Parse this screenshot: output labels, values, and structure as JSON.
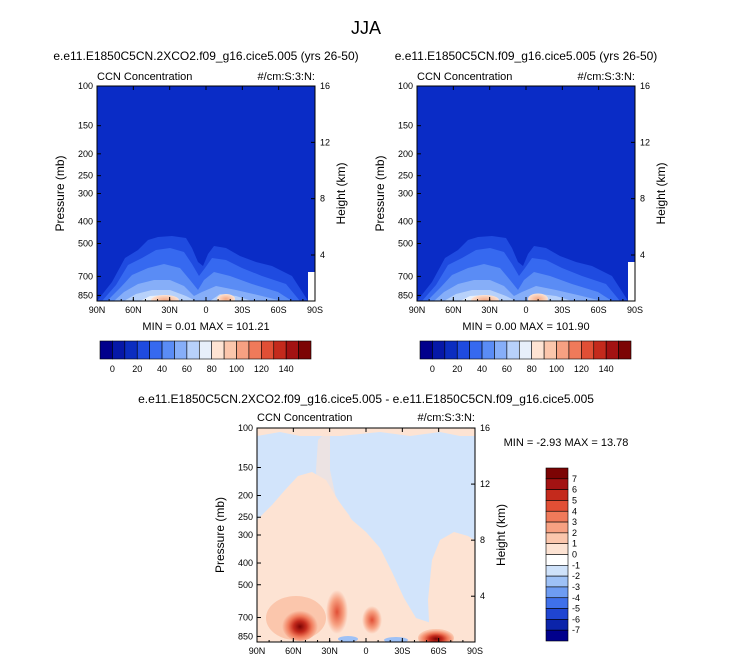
{
  "figure_title": "JJA",
  "chart_data": [
    {
      "type": "heatmap",
      "title": "e.e11.E1850C5CN.2XCO2.f09_g16.cice5.005 (yrs 26-50)",
      "subtitle_left": "CCN Concentration",
      "subtitle_right": "#/cm:S:3:N:",
      "ylabel": "Pressure (mb)",
      "y2label": "Height (km)",
      "x_ticks": [
        "90N",
        "60N",
        "30N",
        "0",
        "30S",
        "60S",
        "90S"
      ],
      "y_ticks": [
        "100",
        "150",
        "200",
        "250",
        "300",
        "400",
        "500",
        "700",
        "850"
      ],
      "y2_ticks": [
        "16",
        "12",
        "8",
        "4"
      ],
      "stats": "MIN =  0.01  MAX = 101.21",
      "min": 0.01,
      "max": 101.21
    },
    {
      "type": "heatmap",
      "title": "e.e11.E1850C5CN.f09_g16.cice5.005 (yrs 26-50)",
      "subtitle_left": "CCN Concentration",
      "subtitle_right": "#/cm:S:3:N:",
      "ylabel": "Pressure (mb)",
      "y2label": "Height (km)",
      "x_ticks": [
        "90N",
        "60N",
        "30N",
        "0",
        "30S",
        "60S",
        "90S"
      ],
      "y_ticks": [
        "100",
        "150",
        "200",
        "250",
        "300",
        "400",
        "500",
        "700",
        "850"
      ],
      "y2_ticks": [
        "16",
        "12",
        "8",
        "4"
      ],
      "stats": "MIN =  0.00  MAX = 101.90",
      "min": 0.0,
      "max": 101.9
    },
    {
      "type": "heatmap",
      "title": "e.e11.E1850C5CN.2XCO2.f09_g16.cice5.005 - e.e11.E1850C5CN.f09_g16.cice5.005",
      "subtitle_left": "CCN Concentration",
      "subtitle_right": "#/cm:S:3:N:",
      "ylabel": "Pressure (mb)",
      "y2label": "Height (km)",
      "x_ticks": [
        "90N",
        "60N",
        "30N",
        "0",
        "30S",
        "60S",
        "90S"
      ],
      "y_ticks": [
        "100",
        "150",
        "200",
        "250",
        "300",
        "400",
        "500",
        "700",
        "850"
      ],
      "y2_ticks": [
        "16",
        "12",
        "8",
        "4"
      ],
      "stats": "MIN =  -2.93  MAX =  13.78",
      "min": -2.93,
      "max": 13.78
    }
  ],
  "colorbar_top": {
    "labels": [
      "0",
      "20",
      "40",
      "60",
      "80",
      "100",
      "120",
      "140"
    ],
    "colors": [
      "#01008c",
      "#0618a8",
      "#0b2dc0",
      "#1f4be0",
      "#3669f0",
      "#5a8cf5",
      "#86aef8",
      "#b7d1fa",
      "#e8f0fb",
      "#fde3d3",
      "#fbc6ac",
      "#f7a182",
      "#f07a5a",
      "#e14f35",
      "#c42a1c",
      "#a31212",
      "#7c0404"
    ]
  },
  "colorbar_diff": {
    "labels": [
      "7",
      "6",
      "5",
      "4",
      "3",
      "2",
      "1",
      "0",
      "-1",
      "-2",
      "-3",
      "-4",
      "-5",
      "-6",
      "-7"
    ],
    "colors": [
      "#7c0404",
      "#a31212",
      "#c42a1c",
      "#e14f35",
      "#f07a5a",
      "#f7a182",
      "#fbc6ac",
      "#fde3d3",
      "#ffffff",
      "#cfe2fa",
      "#9ec1f6",
      "#6e9cf2",
      "#3f70ea",
      "#1f45d2",
      "#0b24aa",
      "#01008c"
    ]
  },
  "colors": {
    "base": "#0a2cc6",
    "diff_background": "#d2e4fb",
    "diff_positive_light": "#fde3d3"
  }
}
